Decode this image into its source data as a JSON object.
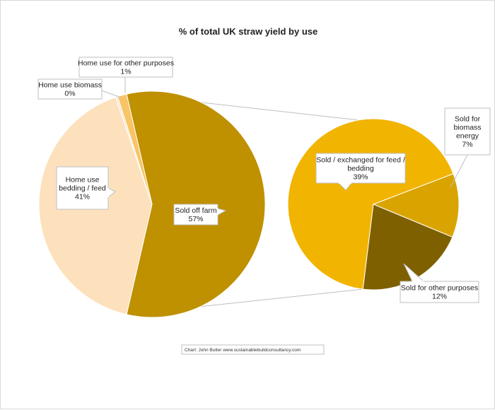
{
  "chart_data": {
    "type": "pie",
    "subtype": "pie-of-pie",
    "title": "% of total UK straw yield by use",
    "primary": {
      "slices": [
        {
          "label": "Sold off farm",
          "value": 57,
          "display": "57%",
          "color": "#bf9000"
        },
        {
          "label": "Home use bedding / feed",
          "value": 41,
          "display": "41%",
          "color": "#fde1bd"
        },
        {
          "label": "Home use biomass",
          "value": 0.3,
          "display": "0%",
          "color": "#fbe5d0"
        },
        {
          "label": "Home use for other purposes",
          "value": 1.3,
          "display": "1%",
          "color": "#f8c465"
        }
      ]
    },
    "secondary": {
      "parent": "Sold off farm",
      "slices": [
        {
          "label": "Sold / exchanged for feed / bedding",
          "value": 39,
          "display": "39%",
          "color": "#f1b400"
        },
        {
          "label": "Sold for biomass energy",
          "value": 7,
          "display": "7%",
          "color": "#d9a400"
        },
        {
          "label": "Sold for other purposes",
          "value": 12,
          "display": "12%",
          "color": "#7f6000"
        }
      ]
    },
    "source": "Chart: John Butler www.sustainablebuildconsultancy.com",
    "legend": "none"
  }
}
